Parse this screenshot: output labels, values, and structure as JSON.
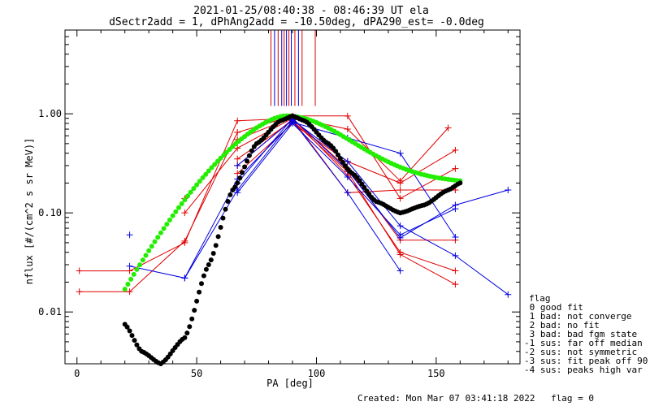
{
  "chart_data": {
    "type": "scatter",
    "title_line1": "2021-01-25/08:40:38 - 08:46:39 UT ela",
    "title_line2": "dSectr2add = 1, dPhAng2add = -10.50deg, dPA290_est=  -0.0deg",
    "xlabel": "PA [deg]",
    "ylabel": "nflux [#/(cm^2 s sr MeV)]",
    "x_scale": "linear",
    "y_scale": "log",
    "xlim": [
      -5,
      185
    ],
    "ylim": [
      0.003,
      7
    ],
    "x_ticks": [
      0,
      50,
      100,
      150
    ],
    "x_tick_labels": [
      "0",
      "50",
      "100",
      "150"
    ],
    "y_ticks": [
      0.01,
      0.1,
      1.0
    ],
    "y_tick_labels": [
      "0.01",
      "0.10",
      "1.00"
    ],
    "colors": {
      "red": "#e00000",
      "blue": "#0000e0",
      "green": "#22ee00",
      "black": "#000000"
    },
    "red_series": [
      {
        "points": [
          [
            1,
            0.026
          ],
          [
            22,
            0.026
          ],
          [
            45,
            0.05
          ],
          [
            67,
            0.85
          ],
          [
            90,
            0.9
          ],
          [
            113,
            0.24
          ],
          [
            135,
            0.04
          ],
          [
            158,
            0.026
          ]
        ]
      },
      {
        "points": [
          [
            1,
            0.016
          ],
          [
            22,
            0.016
          ],
          [
            45,
            0.052
          ],
          [
            67,
            0.65
          ],
          [
            90,
            0.95
          ],
          [
            113,
            0.95
          ],
          [
            135,
            0.14
          ],
          [
            158,
            0.28
          ]
        ]
      },
      {
        "points": [
          [
            45,
            0.14
          ],
          [
            67,
            0.55
          ],
          [
            90,
            0.92
          ],
          [
            113,
            0.7
          ],
          [
            135,
            0.21
          ],
          [
            155,
            0.72
          ]
        ]
      },
      {
        "points": [
          [
            45,
            0.1
          ],
          [
            67,
            0.45
          ],
          [
            90,
            0.9
          ],
          [
            113,
            0.28
          ],
          [
            135,
            0.053
          ],
          [
            158,
            0.053
          ]
        ]
      },
      {
        "points": [
          [
            67,
            0.35
          ],
          [
            90,
            0.85
          ],
          [
            113,
            0.26
          ],
          [
            135,
            0.038
          ],
          [
            158,
            0.019
          ]
        ]
      },
      {
        "points": [
          [
            67,
            0.25
          ],
          [
            90,
            0.8
          ],
          [
            113,
            0.33
          ],
          [
            135,
            0.2
          ],
          [
            158,
            0.43
          ]
        ]
      },
      {
        "points": [
          [
            67,
            0.3
          ],
          [
            90,
            0.88
          ],
          [
            113,
            0.16
          ],
          [
            135,
            0.17
          ],
          [
            158,
            0.17
          ]
        ]
      }
    ],
    "blue_series": [
      {
        "points": [
          [
            22,
            0.029
          ],
          [
            45,
            0.022
          ],
          [
            67,
            0.17
          ],
          [
            90,
            0.85
          ],
          [
            113,
            0.16
          ],
          [
            135,
            0.026
          ]
        ]
      },
      {
        "points": [
          [
            45,
            0.022
          ],
          [
            67,
            0.22
          ],
          [
            90,
            0.82
          ],
          [
            113,
            0.57
          ],
          [
            135,
            0.4
          ],
          [
            158,
            0.057
          ]
        ]
      },
      {
        "points": [
          [
            67,
            0.2
          ],
          [
            90,
            0.9
          ],
          [
            113,
            0.27
          ],
          [
            135,
            0.056
          ],
          [
            158,
            0.12
          ],
          [
            180,
            0.17
          ]
        ]
      },
      {
        "points": [
          [
            67,
            0.3
          ],
          [
            90,
            0.87
          ],
          [
            113,
            0.33
          ],
          [
            135,
            0.074
          ],
          [
            158,
            0.037
          ],
          [
            180,
            0.015
          ]
        ]
      },
      {
        "points": [
          [
            67,
            0.16
          ],
          [
            90,
            0.8
          ],
          [
            113,
            0.23
          ],
          [
            135,
            0.06
          ],
          [
            158,
            0.11
          ]
        ]
      }
    ],
    "blue_markers": [
      [
        22,
        0.06
      ]
    ],
    "green_curve": {
      "center": 87,
      "log10_peak": -0.02,
      "curvature": 2.22,
      "offset": -0.2,
      "x_from": 20,
      "x_to": 160
    },
    "black_curve": [
      [
        20,
        0.0075
      ],
      [
        27,
        0.004
      ],
      [
        35,
        0.003
      ],
      [
        45,
        0.0055
      ],
      [
        55,
        0.03
      ],
      [
        65,
        0.17
      ],
      [
        75,
        0.5
      ],
      [
        85,
        0.85
      ],
      [
        90,
        0.95
      ],
      [
        95,
        0.85
      ],
      [
        105,
        0.5
      ],
      [
        115,
        0.25
      ],
      [
        125,
        0.13
      ],
      [
        135,
        0.1
      ],
      [
        145,
        0.12
      ],
      [
        155,
        0.17
      ],
      [
        160,
        0.2
      ]
    ],
    "vertical_lines": [
      {
        "x": 81,
        "color": "red"
      },
      {
        "x": 82.5,
        "color": "blue"
      },
      {
        "x": 84,
        "color": "red"
      },
      {
        "x": 85.5,
        "color": "blue"
      },
      {
        "x": 86.5,
        "color": "red"
      },
      {
        "x": 87.5,
        "color": "blue"
      },
      {
        "x": 88.5,
        "color": "red"
      },
      {
        "x": 89.5,
        "color": "blue"
      },
      {
        "x": 91,
        "color": "red"
      },
      {
        "x": 92.5,
        "color": "blue"
      },
      {
        "x": 94,
        "color": "red"
      },
      {
        "x": 99.5,
        "color": "red"
      }
    ],
    "vertical_lines_bottom_y": 1.2
  },
  "legend": {
    "title": "flag",
    "items": [
      " 0 good fit",
      " 1 bad: not converge",
      " 2 bad: no fit",
      " 3 bad: bad fgm state",
      "-1 sus: far off median",
      "-2 sus: not symmetric",
      "-3 sus: fit peak off 90",
      "-4 sus: peaks high var"
    ]
  },
  "footer": {
    "created": "Created: Mon Mar 07 03:41:18 2022",
    "flag": "flag = 0"
  }
}
